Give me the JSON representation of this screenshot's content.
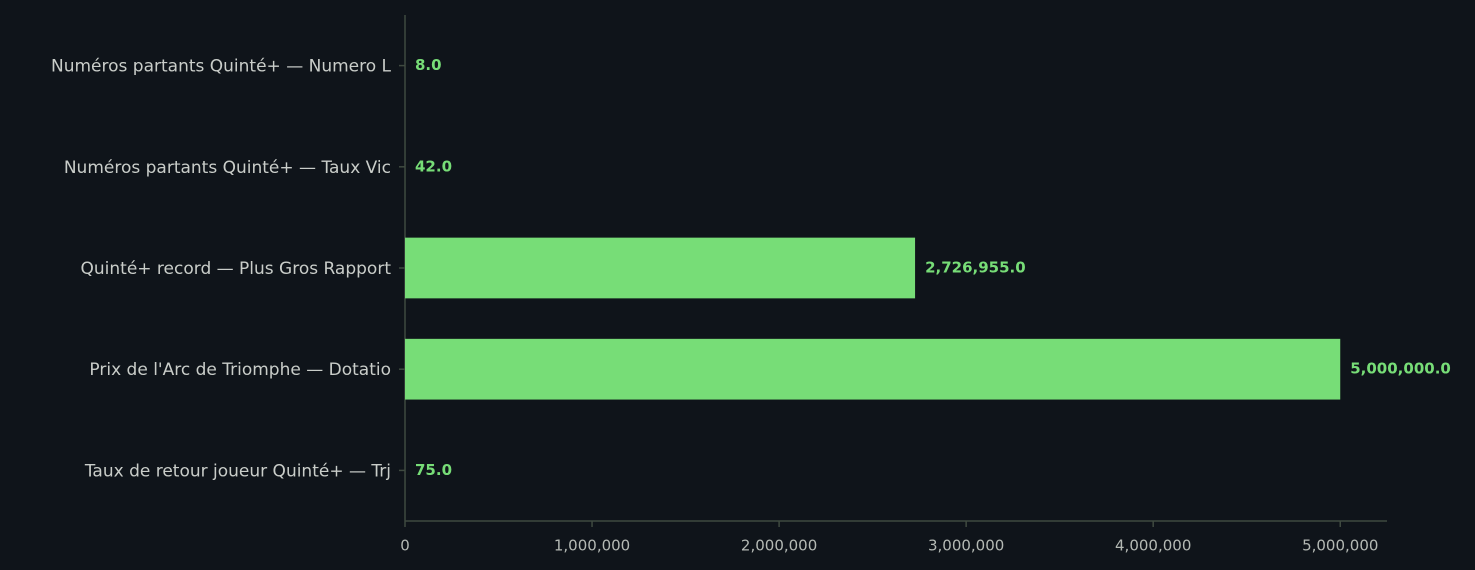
{
  "chart_data": {
    "type": "barh",
    "categories": [
      "Numéros partants Quinté+ — Numero L",
      "Numéros partants Quinté+ — Taux Vic",
      "Quinté+ record — Plus Gros Rapport",
      "Prix de l'Arc de Triomphe — Dotatio",
      "Taux de retour joueur Quinté+ — Trj"
    ],
    "values": [
      8.0,
      42.0,
      2726955.0,
      5000000.0,
      75.0
    ],
    "value_labels": [
      "8.0",
      "42.0",
      "2,726,955.0",
      "5,000,000.0",
      "75.0"
    ],
    "color": "#77dd77",
    "xlim": [
      0,
      5250000
    ],
    "xticks": [
      0,
      {
        "value": 1000000,
        "label": "1,000,000"
      },
      {
        "value": 2000000,
        "label": "2,000,000"
      },
      {
        "value": 3000000,
        "label": "3,000,000"
      },
      {
        "value": 4000000,
        "label": "4,000,000"
      },
      {
        "value": 5000000,
        "label": "5,000,000"
      }
    ],
    "grid": false
  }
}
